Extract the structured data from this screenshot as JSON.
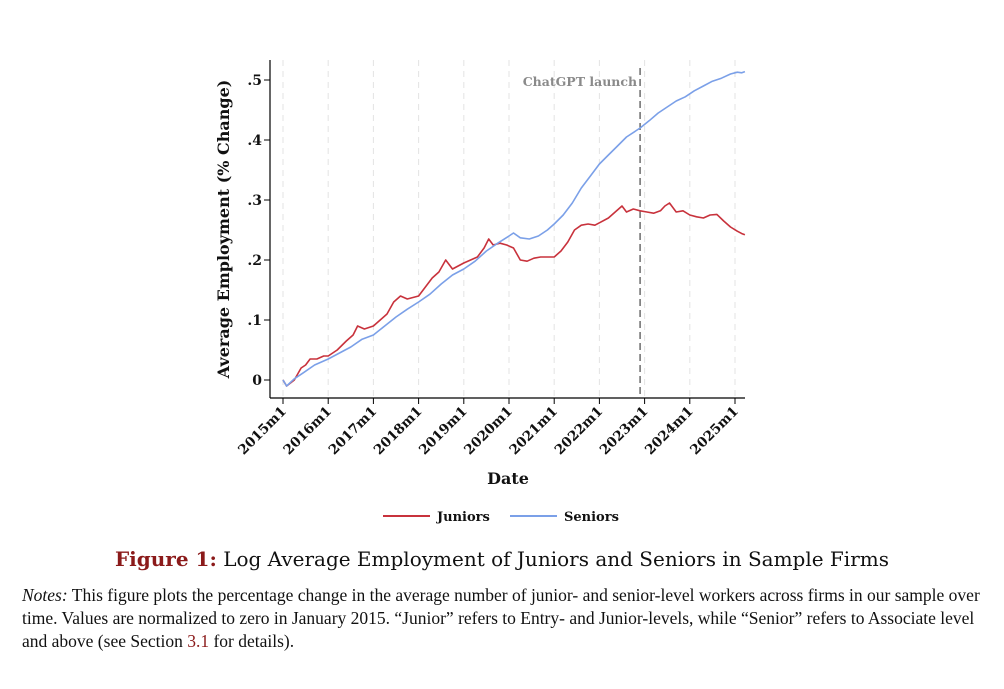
{
  "chart_data": {
    "type": "line",
    "xlabel": "Date",
    "ylabel": "Average Employment (% Change)",
    "ylim": [
      -0.02,
      0.52
    ],
    "xlim": [
      2015.0,
      2025.25
    ],
    "yticks": [
      0,
      0.1,
      0.2,
      0.3,
      0.4,
      0.5
    ],
    "ytick_labels": [
      "0",
      ".1",
      ".2",
      ".3",
      ".4",
      ".5"
    ],
    "xticks": [
      2015,
      2016,
      2017,
      2018,
      2019,
      2020,
      2021,
      2022,
      2023,
      2024,
      2025
    ],
    "xtick_labels": [
      "2015m1",
      "2016m1",
      "2017m1",
      "2018m1",
      "2019m1",
      "2020m1",
      "2021m1",
      "2022m1",
      "2023m1",
      "2024m1",
      "2025m1"
    ],
    "grid": "vertical dashed at each year",
    "annotation": {
      "label": "ChatGPT launch",
      "x": 2022.9
    },
    "legend": {
      "placement": "bottom"
    },
    "series": [
      {
        "name": "Juniors",
        "color": "#c8323c",
        "points": [
          [
            2015.0,
            0.0
          ],
          [
            2015.08,
            -0.01
          ],
          [
            2015.25,
            0.0
          ],
          [
            2015.4,
            0.02
          ],
          [
            2015.5,
            0.025
          ],
          [
            2015.6,
            0.035
          ],
          [
            2015.75,
            0.035
          ],
          [
            2015.9,
            0.04
          ],
          [
            2016.0,
            0.04
          ],
          [
            2016.2,
            0.05
          ],
          [
            2016.4,
            0.065
          ],
          [
            2016.55,
            0.075
          ],
          [
            2016.65,
            0.09
          ],
          [
            2016.8,
            0.085
          ],
          [
            2017.0,
            0.09
          ],
          [
            2017.15,
            0.1
          ],
          [
            2017.3,
            0.11
          ],
          [
            2017.45,
            0.13
          ],
          [
            2017.6,
            0.14
          ],
          [
            2017.75,
            0.135
          ],
          [
            2018.0,
            0.14
          ],
          [
            2018.15,
            0.155
          ],
          [
            2018.3,
            0.17
          ],
          [
            2018.45,
            0.18
          ],
          [
            2018.6,
            0.2
          ],
          [
            2018.75,
            0.185
          ],
          [
            2019.0,
            0.195
          ],
          [
            2019.15,
            0.2
          ],
          [
            2019.3,
            0.205
          ],
          [
            2019.45,
            0.22
          ],
          [
            2019.55,
            0.235
          ],
          [
            2019.65,
            0.225
          ],
          [
            2019.8,
            0.228
          ],
          [
            2019.95,
            0.225
          ],
          [
            2020.1,
            0.22
          ],
          [
            2020.25,
            0.2
          ],
          [
            2020.4,
            0.198
          ],
          [
            2020.55,
            0.203
          ],
          [
            2020.7,
            0.205
          ],
          [
            2020.85,
            0.205
          ],
          [
            2021.0,
            0.205
          ],
          [
            2021.15,
            0.215
          ],
          [
            2021.3,
            0.23
          ],
          [
            2021.45,
            0.25
          ],
          [
            2021.6,
            0.258
          ],
          [
            2021.75,
            0.26
          ],
          [
            2021.9,
            0.258
          ],
          [
            2022.0,
            0.262
          ],
          [
            2022.2,
            0.27
          ],
          [
            2022.35,
            0.28
          ],
          [
            2022.5,
            0.29
          ],
          [
            2022.6,
            0.28
          ],
          [
            2022.75,
            0.285
          ],
          [
            2022.9,
            0.282
          ],
          [
            2023.05,
            0.28
          ],
          [
            2023.2,
            0.278
          ],
          [
            2023.35,
            0.282
          ],
          [
            2023.45,
            0.29
          ],
          [
            2023.55,
            0.295
          ],
          [
            2023.7,
            0.28
          ],
          [
            2023.85,
            0.282
          ],
          [
            2024.0,
            0.275
          ],
          [
            2024.15,
            0.272
          ],
          [
            2024.3,
            0.27
          ],
          [
            2024.45,
            0.275
          ],
          [
            2024.6,
            0.276
          ],
          [
            2024.75,
            0.265
          ],
          [
            2024.9,
            0.255
          ],
          [
            2025.05,
            0.248
          ],
          [
            2025.15,
            0.244
          ],
          [
            2025.22,
            0.242
          ]
        ]
      },
      {
        "name": "Seniors",
        "color": "#7ba0e8",
        "points": [
          [
            2015.0,
            0.0
          ],
          [
            2015.08,
            -0.01
          ],
          [
            2015.25,
            0.002
          ],
          [
            2015.45,
            0.012
          ],
          [
            2015.7,
            0.025
          ],
          [
            2016.0,
            0.035
          ],
          [
            2016.25,
            0.045
          ],
          [
            2016.5,
            0.055
          ],
          [
            2016.75,
            0.068
          ],
          [
            2017.0,
            0.075
          ],
          [
            2017.25,
            0.09
          ],
          [
            2017.5,
            0.105
          ],
          [
            2017.75,
            0.118
          ],
          [
            2018.0,
            0.13
          ],
          [
            2018.25,
            0.143
          ],
          [
            2018.5,
            0.16
          ],
          [
            2018.75,
            0.175
          ],
          [
            2019.0,
            0.185
          ],
          [
            2019.25,
            0.198
          ],
          [
            2019.5,
            0.215
          ],
          [
            2019.75,
            0.228
          ],
          [
            2020.0,
            0.24
          ],
          [
            2020.1,
            0.245
          ],
          [
            2020.25,
            0.237
          ],
          [
            2020.45,
            0.235
          ],
          [
            2020.65,
            0.24
          ],
          [
            2020.85,
            0.25
          ],
          [
            2021.0,
            0.26
          ],
          [
            2021.2,
            0.275
          ],
          [
            2021.4,
            0.295
          ],
          [
            2021.6,
            0.32
          ],
          [
            2021.8,
            0.34
          ],
          [
            2022.0,
            0.36
          ],
          [
            2022.2,
            0.375
          ],
          [
            2022.4,
            0.39
          ],
          [
            2022.6,
            0.405
          ],
          [
            2022.8,
            0.415
          ],
          [
            2022.9,
            0.42
          ],
          [
            2023.1,
            0.432
          ],
          [
            2023.3,
            0.445
          ],
          [
            2023.5,
            0.455
          ],
          [
            2023.7,
            0.465
          ],
          [
            2023.9,
            0.472
          ],
          [
            2024.1,
            0.482
          ],
          [
            2024.3,
            0.49
          ],
          [
            2024.5,
            0.498
          ],
          [
            2024.7,
            0.503
          ],
          [
            2024.9,
            0.51
          ],
          [
            2025.05,
            0.513
          ],
          [
            2025.15,
            0.512
          ],
          [
            2025.22,
            0.514
          ]
        ]
      }
    ]
  },
  "caption": {
    "figure_label": "Figure 1:",
    "title": "Log Average Employment of Juniors and Seniors in Sample Firms"
  },
  "notes": {
    "lead": "Notes:",
    "text_before_ref": " This figure plots the percentage change in the average number of junior- and senior-level workers across firms in our sample over time.  Values are normalized to zero in January 2015.  “Junior” refers to Entry- and Junior-levels, while “Senior” refers to Associate level and above (see Section ",
    "section_ref": "3.1",
    "text_after_ref": " for details)."
  }
}
